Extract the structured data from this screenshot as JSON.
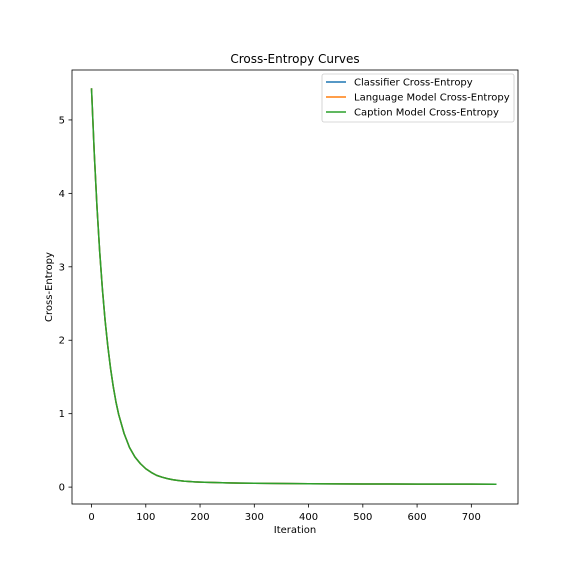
{
  "chart_data": {
    "type": "line",
    "title": "Cross-Entropy Curves",
    "xlabel": "Iteration",
    "ylabel": "Cross-Entropy",
    "xlim": [
      -36,
      786
    ],
    "ylim": [
      -0.23,
      5.68
    ],
    "xticks": [
      0,
      100,
      200,
      300,
      400,
      500,
      600,
      700
    ],
    "yticks": [
      0,
      1,
      2,
      3,
      4,
      5
    ],
    "grid": false,
    "legend_position": "top-right",
    "x": [
      0,
      5,
      10,
      15,
      20,
      25,
      30,
      35,
      40,
      45,
      50,
      60,
      70,
      80,
      90,
      100,
      110,
      120,
      130,
      140,
      150,
      160,
      170,
      180,
      190,
      200,
      225,
      250,
      275,
      300,
      350,
      400,
      450,
      500,
      550,
      600,
      650,
      700,
      745
    ],
    "series": [
      {
        "name": "Classifier Cross-Entropy",
        "color": "#1f77b4",
        "values": [
          5.42,
          4.55,
          3.82,
          3.21,
          2.7,
          2.27,
          1.92,
          1.62,
          1.37,
          1.16,
          0.99,
          0.73,
          0.54,
          0.41,
          0.32,
          0.25,
          0.2,
          0.16,
          0.135,
          0.115,
          0.1,
          0.09,
          0.082,
          0.076,
          0.071,
          0.068,
          0.062,
          0.058,
          0.055,
          0.053,
          0.049,
          0.046,
          0.044,
          0.043,
          0.042,
          0.041,
          0.04,
          0.04,
          0.039
        ]
      },
      {
        "name": "Language Model Cross-Entropy",
        "color": "#ff7f0e",
        "values": [
          5.42,
          4.55,
          3.82,
          3.21,
          2.7,
          2.27,
          1.92,
          1.62,
          1.37,
          1.16,
          0.99,
          0.73,
          0.54,
          0.41,
          0.32,
          0.25,
          0.2,
          0.16,
          0.135,
          0.115,
          0.1,
          0.09,
          0.082,
          0.076,
          0.071,
          0.068,
          0.062,
          0.058,
          0.055,
          0.053,
          0.049,
          0.046,
          0.044,
          0.043,
          0.042,
          0.041,
          0.04,
          0.04,
          0.039
        ]
      },
      {
        "name": "Caption Model Cross-Entropy",
        "color": "#2ca02c",
        "values": [
          5.42,
          4.55,
          3.82,
          3.21,
          2.7,
          2.27,
          1.92,
          1.62,
          1.37,
          1.16,
          0.99,
          0.73,
          0.54,
          0.41,
          0.32,
          0.25,
          0.2,
          0.16,
          0.135,
          0.115,
          0.1,
          0.09,
          0.082,
          0.076,
          0.071,
          0.068,
          0.062,
          0.058,
          0.055,
          0.053,
          0.049,
          0.046,
          0.044,
          0.043,
          0.042,
          0.041,
          0.04,
          0.04,
          0.039
        ]
      }
    ]
  }
}
